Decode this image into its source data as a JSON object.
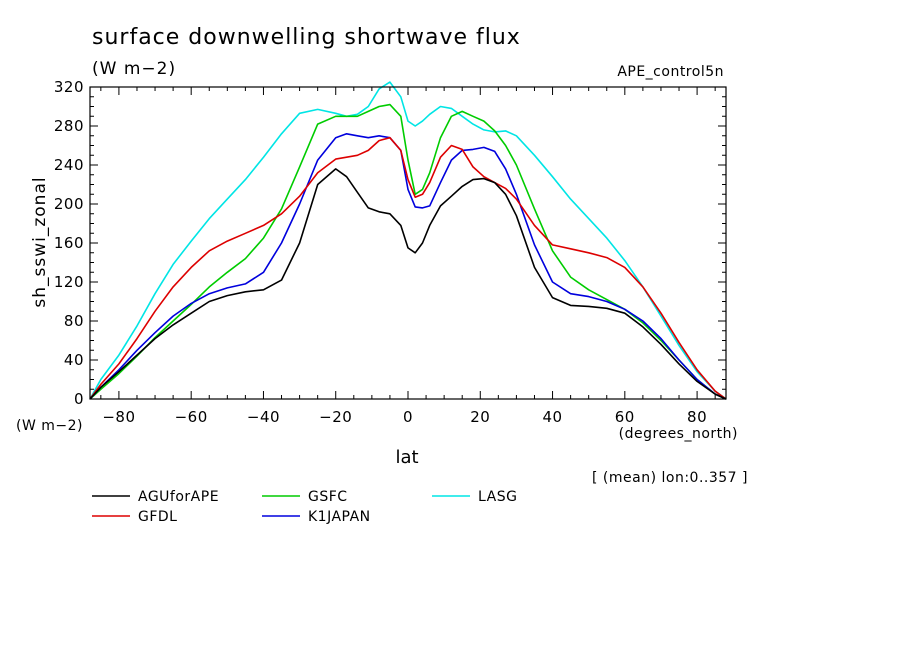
{
  "chart_data": {
    "type": "line",
    "title": "surface downwelling shortwave flux",
    "units": "(W m−2)",
    "subtitle_right": "APE_control5n",
    "ylabel": "sh_sswi_zonal",
    "ylabel_units": "(W m−2)",
    "xlabel": "lat",
    "xlabel_units": "(degrees_north)",
    "annotation": "[ (mean) lon:0..357 ]",
    "xlim": [
      -88,
      88
    ],
    "ylim": [
      0,
      320
    ],
    "xticks": [
      -80,
      -60,
      -40,
      -20,
      0,
      20,
      40,
      60,
      80
    ],
    "yticks": [
      0,
      40,
      80,
      120,
      160,
      200,
      240,
      280,
      320
    ],
    "x": [
      -88,
      -85,
      -80,
      -75,
      -70,
      -65,
      -60,
      -55,
      -50,
      -45,
      -40,
      -35,
      -30,
      -25,
      -20,
      -17,
      -14,
      -11,
      -8,
      -5,
      -2,
      0,
      2,
      4,
      6,
      9,
      12,
      15,
      18,
      21,
      24,
      27,
      30,
      35,
      40,
      45,
      50,
      55,
      60,
      65,
      70,
      75,
      80,
      85,
      88
    ],
    "series": [
      {
        "name": "AGUforAPE",
        "color": "#000000",
        "values": [
          0,
          12,
          28,
          45,
          62,
          76,
          88,
          100,
          106,
          110,
          112,
          122,
          160,
          220,
          236,
          228,
          212,
          196,
          192,
          190,
          178,
          155,
          150,
          160,
          178,
          198,
          208,
          218,
          225,
          226,
          222,
          210,
          188,
          135,
          104,
          96,
          95,
          93,
          88,
          74,
          56,
          36,
          18,
          5,
          0
        ]
      },
      {
        "name": "GFDL",
        "color": "#dd0000",
        "values": [
          0,
          15,
          36,
          62,
          90,
          115,
          135,
          152,
          162,
          170,
          178,
          190,
          208,
          232,
          246,
          248,
          250,
          255,
          265,
          268,
          255,
          225,
          207,
          210,
          222,
          248,
          260,
          256,
          238,
          228,
          222,
          216,
          205,
          178,
          158,
          154,
          150,
          145,
          135,
          115,
          88,
          58,
          30,
          8,
          0
        ]
      },
      {
        "name": "GSFC",
        "color": "#00cc00",
        "values": [
          0,
          10,
          26,
          44,
          63,
          80,
          97,
          115,
          130,
          144,
          165,
          195,
          238,
          282,
          290,
          290,
          290,
          295,
          300,
          302,
          290,
          245,
          210,
          215,
          232,
          268,
          290,
          295,
          290,
          285,
          275,
          260,
          240,
          195,
          152,
          125,
          112,
          102,
          92,
          78,
          60,
          40,
          20,
          5,
          0
        ]
      },
      {
        "name": "LASG",
        "color": "#00e5e5",
        "values": [
          0,
          20,
          45,
          75,
          108,
          138,
          162,
          185,
          205,
          225,
          248,
          272,
          293,
          297,
          293,
          290,
          292,
          300,
          318,
          325,
          310,
          285,
          280,
          285,
          292,
          300,
          298,
          290,
          282,
          276,
          274,
          275,
          270,
          250,
          228,
          205,
          185,
          165,
          142,
          115,
          85,
          55,
          28,
          8,
          0
        ]
      },
      {
        "name": "K1JAPAN",
        "color": "#0000dd",
        "values": [
          0,
          12,
          30,
          50,
          68,
          85,
          98,
          108,
          114,
          118,
          130,
          160,
          200,
          245,
          268,
          272,
          270,
          268,
          270,
          268,
          255,
          215,
          197,
          196,
          198,
          222,
          245,
          255,
          256,
          258,
          254,
          236,
          210,
          158,
          120,
          108,
          105,
          100,
          92,
          80,
          62,
          40,
          20,
          5,
          0
        ]
      }
    ],
    "legend_placement": "below"
  }
}
